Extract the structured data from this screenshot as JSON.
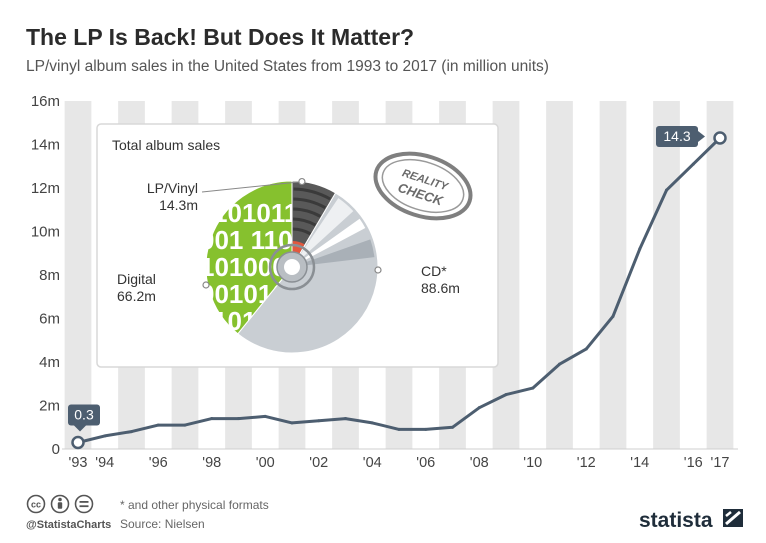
{
  "title": "The LP Is Back! But Does It Matter?",
  "subtitle": "LP/vinyl album sales in the United States from 1993 to 2017 (in million units)",
  "footer": {
    "note": "* and other physical formats",
    "source": "Source: Nielsen",
    "handle": "@StatistaCharts",
    "brand": "statista",
    "license_icons": [
      "cc",
      "by",
      "nd"
    ]
  },
  "colors": {
    "line": "#4d5e70",
    "stripe": "#e7e7e7",
    "badge": "#4d5e70",
    "lp": "#595959",
    "lp_accent": "#e2583e",
    "cd": "#c9ced3",
    "digital": "#86c12e"
  },
  "inset": {
    "title": "Total album sales",
    "badge_line1": "REALITY",
    "badge_line2": "CHECK",
    "digital_pattern": [
      "11010",
      "001 110",
      "1010000",
      "0010101",
      "11010"
    ],
    "slices": [
      {
        "name": "LP/Vinyl",
        "value": 14.3,
        "value_label": "14.3m"
      },
      {
        "name": "CD*",
        "value": 88.6,
        "value_label": "88.6m"
      },
      {
        "name": "Digital",
        "value": 66.2,
        "value_label": "66.2m"
      }
    ]
  },
  "chart_data": [
    {
      "type": "line",
      "x": [
        1993,
        1994,
        1995,
        1996,
        1997,
        1998,
        1999,
        2000,
        2001,
        2002,
        2003,
        2004,
        2005,
        2006,
        2007,
        2008,
        2009,
        2010,
        2011,
        2012,
        2013,
        2014,
        2015,
        2016,
        2017
      ],
      "series": [
        {
          "values": [
            0.3,
            0.6,
            0.8,
            1.1,
            1.1,
            1.4,
            1.4,
            1.5,
            1.2,
            1.3,
            1.4,
            1.2,
            0.9,
            0.9,
            1.0,
            1.9,
            2.5,
            2.8,
            3.9,
            4.6,
            6.1,
            9.2,
            11.9,
            13.1,
            14.3
          ]
        }
      ],
      "xticks": [
        "'93",
        "'94",
        "'96",
        "'98",
        "'00",
        "'02",
        "'04",
        "'06",
        "'08",
        "'10",
        "'12",
        "'14",
        "'16",
        "'17"
      ],
      "xtick_values": [
        1993,
        1994,
        1996,
        1998,
        2000,
        2002,
        2004,
        2006,
        2008,
        2010,
        2012,
        2014,
        2016,
        2017
      ],
      "yticks": [
        "0",
        "2m",
        "4m",
        "6m",
        "8m",
        "10m",
        "12m",
        "14m",
        "16m"
      ],
      "ytick_values": [
        0,
        2,
        4,
        6,
        8,
        10,
        12,
        14,
        16
      ],
      "ylim": [
        0,
        16
      ],
      "xlim": [
        1993,
        2017
      ],
      "annotations": [
        {
          "x": 1993,
          "y": 0.3,
          "label": "0.3"
        },
        {
          "x": 2017,
          "y": 14.3,
          "label": "14.3"
        }
      ],
      "grid": "alternating vertical stripes",
      "xlabel": "",
      "ylabel": ""
    },
    {
      "type": "pie",
      "title": "Total album sales",
      "labels": [
        "LP/Vinyl",
        "CD*",
        "Digital"
      ],
      "values": [
        14.3,
        88.6,
        66.2
      ]
    }
  ]
}
